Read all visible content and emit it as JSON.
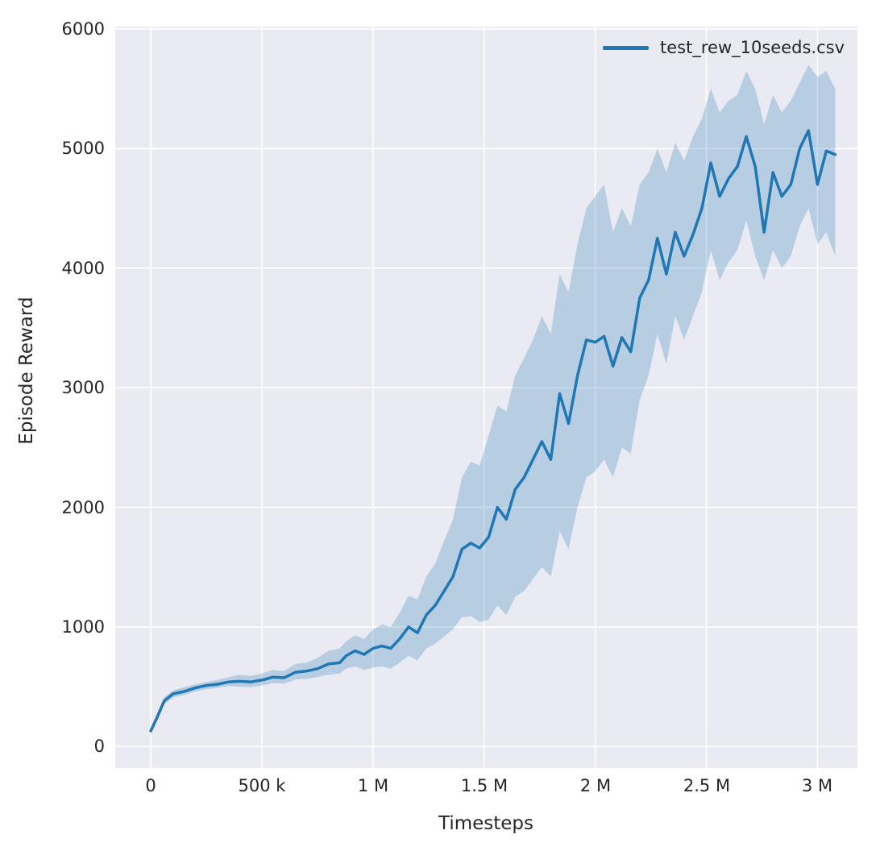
{
  "chart_data": {
    "type": "line",
    "title": "",
    "xlabel": "Timesteps",
    "ylabel": "Episode Reward",
    "plot_bg": "#eaeaf2",
    "grid_color": "#ffffff",
    "grid": true,
    "legend_position": "upper right",
    "legend": [
      {
        "label": "test_rew_10seeds.csv",
        "color": "#1f77b4"
      }
    ],
    "xlim": [
      -160000,
      3180000
    ],
    "ylim": [
      -180,
      6020
    ],
    "xticks": {
      "values": [
        0,
        500000,
        1000000,
        1500000,
        2000000,
        2500000,
        3000000
      ],
      "labels": [
        "0",
        "500 k",
        "1 M",
        "1.5 M",
        "2 M",
        "2.5 M",
        "3 M"
      ]
    },
    "yticks": {
      "values": [
        0,
        1000,
        2000,
        3000,
        4000,
        5000,
        6000
      ],
      "labels": [
        "0",
        "1000",
        "2000",
        "3000",
        "4000",
        "5000",
        "6000"
      ]
    },
    "series": [
      {
        "name": "test_rew_10seeds.csv",
        "color": "#1f77b4",
        "band_opacity": 0.25,
        "x": [
          0,
          30000,
          60000,
          100000,
          150000,
          200000,
          250000,
          300000,
          350000,
          400000,
          450000,
          500000,
          550000,
          600000,
          650000,
          700000,
          750000,
          800000,
          850000,
          880000,
          920000,
          960000,
          1000000,
          1040000,
          1080000,
          1120000,
          1160000,
          1200000,
          1240000,
          1280000,
          1320000,
          1360000,
          1400000,
          1440000,
          1480000,
          1520000,
          1560000,
          1600000,
          1640000,
          1680000,
          1720000,
          1760000,
          1800000,
          1840000,
          1880000,
          1920000,
          1960000,
          2000000,
          2040000,
          2080000,
          2120000,
          2160000,
          2200000,
          2240000,
          2280000,
          2320000,
          2360000,
          2400000,
          2440000,
          2480000,
          2520000,
          2560000,
          2600000,
          2640000,
          2680000,
          2720000,
          2760000,
          2800000,
          2840000,
          2880000,
          2920000,
          2960000,
          3000000,
          3040000,
          3080000
        ],
        "mean": [
          130,
          250,
          380,
          440,
          460,
          490,
          510,
          520,
          540,
          545,
          540,
          555,
          580,
          575,
          620,
          630,
          650,
          690,
          700,
          760,
          800,
          770,
          820,
          840,
          820,
          900,
          1000,
          950,
          1100,
          1180,
          1300,
          1420,
          1650,
          1700,
          1660,
          1750,
          2000,
          1900,
          2150,
          2250,
          2400,
          2550,
          2400,
          2950,
          2700,
          3100,
          3400,
          3380,
          3430,
          3180,
          3420,
          3300,
          3750,
          3900,
          4250,
          3950,
          4300,
          4100,
          4280,
          4500,
          4880,
          4600,
          4750,
          4850,
          5100,
          4850,
          4300,
          4800,
          4600,
          4700,
          5000,
          5150,
          4700,
          4980,
          4950
        ],
        "lower": [
          110,
          220,
          350,
          410,
          430,
          460,
          480,
          490,
          505,
          500,
          495,
          510,
          530,
          525,
          560,
          565,
          580,
          600,
          610,
          650,
          670,
          640,
          660,
          670,
          650,
          700,
          760,
          720,
          820,
          860,
          920,
          980,
          1080,
          1090,
          1040,
          1060,
          1180,
          1100,
          1250,
          1300,
          1400,
          1500,
          1420,
          1800,
          1650,
          2000,
          2250,
          2300,
          2400,
          2250,
          2500,
          2450,
          2900,
          3100,
          3450,
          3200,
          3600,
          3400,
          3600,
          3800,
          4150,
          3900,
          4050,
          4150,
          4400,
          4100,
          3900,
          4150,
          4000,
          4100,
          4350,
          4500,
          4200,
          4300,
          4100
        ],
        "upper": [
          155,
          285,
          410,
          470,
          495,
          520,
          540,
          555,
          580,
          600,
          590,
          610,
          640,
          630,
          690,
          700,
          740,
          800,
          820,
          880,
          930,
          900,
          980,
          1020,
          1000,
          1120,
          1260,
          1230,
          1420,
          1530,
          1720,
          1900,
          2250,
          2380,
          2350,
          2600,
          2850,
          2800,
          3100,
          3250,
          3400,
          3600,
          3450,
          3950,
          3800,
          4200,
          4500,
          4600,
          4700,
          4300,
          4500,
          4350,
          4700,
          4800,
          5000,
          4800,
          5050,
          4900,
          5100,
          5250,
          5500,
          5300,
          5400,
          5450,
          5650,
          5500,
          5200,
          5450,
          5300,
          5400,
          5550,
          5700,
          5600,
          5650,
          5500
        ]
      }
    ]
  }
}
